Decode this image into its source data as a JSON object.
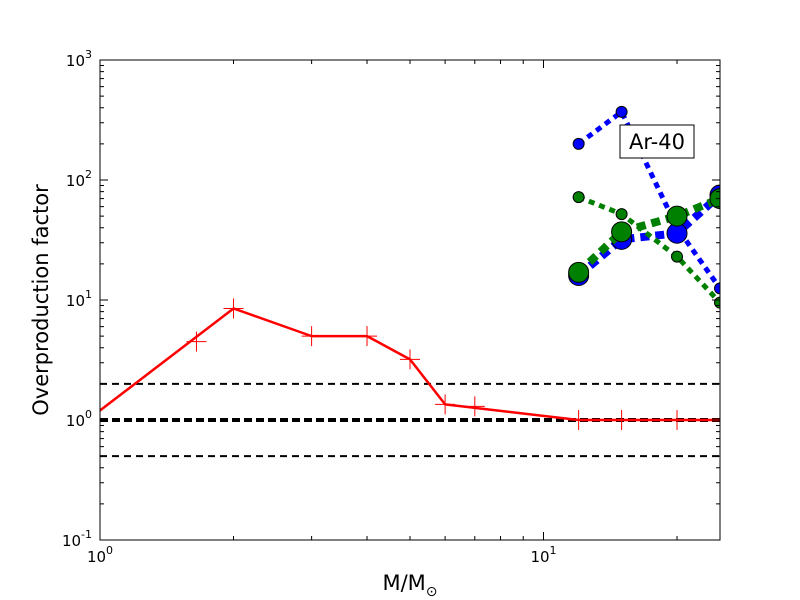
{
  "chart_data": {
    "type": "line",
    "xlabel": "M/M",
    "xlabel_subscript": "⊙",
    "ylabel": "Overproduction factor",
    "xscale": "log",
    "yscale": "log",
    "xlim": [
      1,
      25
    ],
    "ylim": [
      0.1,
      1000
    ],
    "x_ticks": [
      {
        "value": 1,
        "base": "10",
        "exp": "0"
      },
      {
        "value": 10,
        "base": "10",
        "exp": "1"
      }
    ],
    "y_ticks": [
      {
        "value": 0.1,
        "base": "10",
        "exp": "-1"
      },
      {
        "value": 1,
        "base": "10",
        "exp": "0"
      },
      {
        "value": 10,
        "base": "10",
        "exp": "1"
      },
      {
        "value": 100,
        "base": "10",
        "exp": "2"
      },
      {
        "value": 1000,
        "base": "10",
        "exp": "3"
      }
    ],
    "annotation": "Ar-40",
    "reference_lines": [
      {
        "y": 2,
        "style": "dashed",
        "weight": "thin"
      },
      {
        "y": 1,
        "style": "dashed",
        "weight": "thick"
      },
      {
        "y": 0.5,
        "style": "dashed",
        "weight": "thin"
      }
    ],
    "series": [
      {
        "style": "solid",
        "color": "#ff0000",
        "x": [
          1,
          2,
          3,
          4,
          5,
          6,
          12,
          15,
          20,
          25
        ],
        "y": [
          1.2,
          8.5,
          5.0,
          5.0,
          3.2,
          1.35,
          1.0,
          1.0,
          1.0,
          1.0
        ]
      },
      {
        "style": "markers",
        "marker": "plus",
        "color": "#ff0000",
        "x": [
          1.65,
          2,
          3,
          4,
          5,
          6,
          7,
          12,
          15,
          20
        ],
        "y": [
          4.5,
          8.5,
          5.0,
          5.0,
          3.2,
          1.35,
          1.3,
          1.0,
          1.0,
          1.0
        ]
      },
      {
        "style": "dotted",
        "color": "#0000ff",
        "width": "thin",
        "x": [
          12,
          15,
          20,
          25
        ],
        "y": [
          200,
          370,
          40,
          12.5
        ]
      },
      {
        "style": "dotted",
        "color": "#0000ff",
        "width": "thick",
        "x": [
          12,
          15,
          20,
          25
        ],
        "y": [
          16,
          32,
          36,
          75
        ]
      },
      {
        "style": "dotted",
        "color": "#008000",
        "width": "thin",
        "x": [
          12,
          15,
          20,
          25
        ],
        "y": [
          72,
          52,
          23,
          9.5
        ]
      },
      {
        "style": "dotted",
        "color": "#008000",
        "width": "thick",
        "x": [
          12,
          15,
          20,
          25
        ],
        "y": [
          17,
          37,
          50,
          70
        ]
      }
    ]
  }
}
